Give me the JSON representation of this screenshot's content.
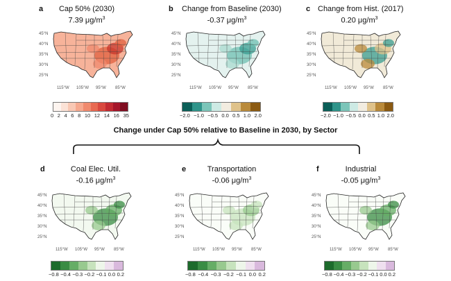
{
  "section_title": "Change under Cap 50% relative to Baseline in 2030, by Sector",
  "panels": [
    {
      "letter": "a",
      "title": "Cap 50% (2030)",
      "value": "7.39 μg/m",
      "sup": "3",
      "ticks": [
        "0",
        "2",
        "4",
        "6",
        "8",
        "10",
        "12",
        "14",
        "16",
        "35"
      ],
      "colors": [
        "#fdf4ef",
        "#fce2d6",
        "#f9c8b4",
        "#f6a98f",
        "#f08a6e",
        "#e86a52",
        "#d9493f",
        "#c22b32",
        "#a4162a",
        "#7f0d21"
      ]
    },
    {
      "letter": "b",
      "title": "Change from Baseline (2030)",
      "value": "-0.37 μg/m",
      "sup": "3",
      "ticks": [
        "−2.0",
        "−1.0",
        "−0.5",
        "0.0",
        "0.5",
        "1.0",
        "2.0"
      ],
      "colors": [
        "#0b5f58",
        "#2f948a",
        "#7cc5b9",
        "#cdeae4",
        "#f2ece0",
        "#dfc28a",
        "#b98a3b",
        "#8b5a12"
      ]
    },
    {
      "letter": "c",
      "title": "Change from Hist. (2017)",
      "value": "0.20 μg/m",
      "sup": "3",
      "ticks": [
        "−2.0",
        "−1.0",
        "−0.5",
        "0.0",
        "0.5",
        "1.0",
        "2.0"
      ],
      "colors": [
        "#0b5f58",
        "#2f948a",
        "#7cc5b9",
        "#cdeae4",
        "#f2ece0",
        "#dfc28a",
        "#b98a3b",
        "#8b5a12"
      ]
    },
    {
      "letter": "d",
      "title": "Coal Elec. Util.",
      "value": "-0.16 μg/m",
      "sup": "3",
      "ticks": [
        "−0.8",
        "−0.4",
        "−0.3",
        "−0.2",
        "−0.1",
        "0.0",
        "0.2"
      ],
      "colors": [
        "#1d6b2c",
        "#3a8c44",
        "#66ad66",
        "#98c98f",
        "#c7e3bd",
        "#eef6ea",
        "#efe0ef",
        "#d9b9dd"
      ]
    },
    {
      "letter": "e",
      "title": "Transportation",
      "value": "-0.06 μg/m",
      "sup": "3",
      "ticks": [
        "−0.8",
        "−0.4",
        "−0.3",
        "−0.2",
        "−0.1",
        "0.0",
        "0.2"
      ],
      "colors": [
        "#1d6b2c",
        "#3a8c44",
        "#66ad66",
        "#98c98f",
        "#c7e3bd",
        "#eef6ea",
        "#efe0ef",
        "#d9b9dd"
      ]
    },
    {
      "letter": "f",
      "title": "Industrial",
      "value": "-0.05 μg/m",
      "sup": "3",
      "ticks": [
        "−0.8",
        "−0.4",
        "−0.3",
        "−0.2",
        "−0.1",
        "0.0",
        "0.2"
      ],
      "colors": [
        "#1d6b2c",
        "#3a8c44",
        "#66ad66",
        "#98c98f",
        "#c7e3bd",
        "#eef6ea",
        "#efe0ef",
        "#d9b9dd"
      ]
    }
  ],
  "lat_labels": [
    "45°N",
    "40°N",
    "35°N",
    "30°N",
    "25°N"
  ],
  "lon_labels": [
    "115°W",
    "105°W",
    "95°W",
    "85°W"
  ]
}
